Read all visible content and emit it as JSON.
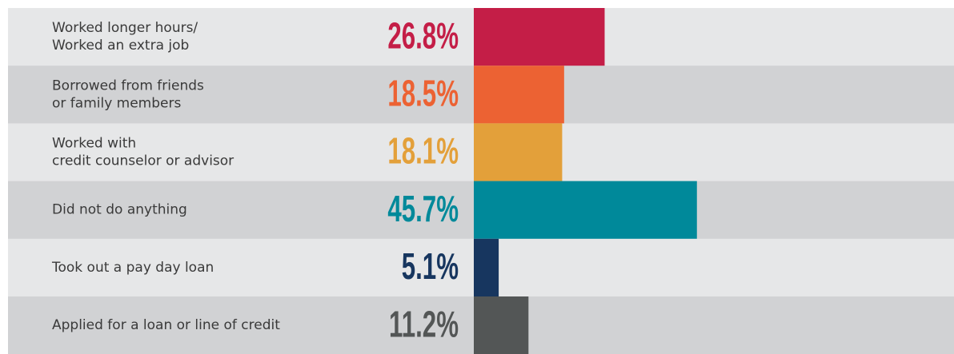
{
  "chart_data": {
    "type": "bar",
    "categories": [
      [
        "Worked longer hours/",
        "Worked an extra job"
      ],
      [
        "Borrowed from friends",
        "or family members"
      ],
      [
        "Worked with",
        "credit counselor or advisor"
      ],
      [
        "Did not do anything"
      ],
      [
        "Took out a pay day loan"
      ],
      [
        "Applied for a loan or line of credit"
      ]
    ],
    "values": [
      26.8,
      18.5,
      18.1,
      45.7,
      5.1,
      11.2
    ],
    "value_labels": [
      "26.8%",
      "18.5%",
      "18.1%",
      "45.7%",
      "5.1%",
      "11.2%"
    ],
    "colors": [
      "#c41e47",
      "#ec6233",
      "#e3a03a",
      "#00899a",
      "#17365f",
      "#535656"
    ]
  }
}
